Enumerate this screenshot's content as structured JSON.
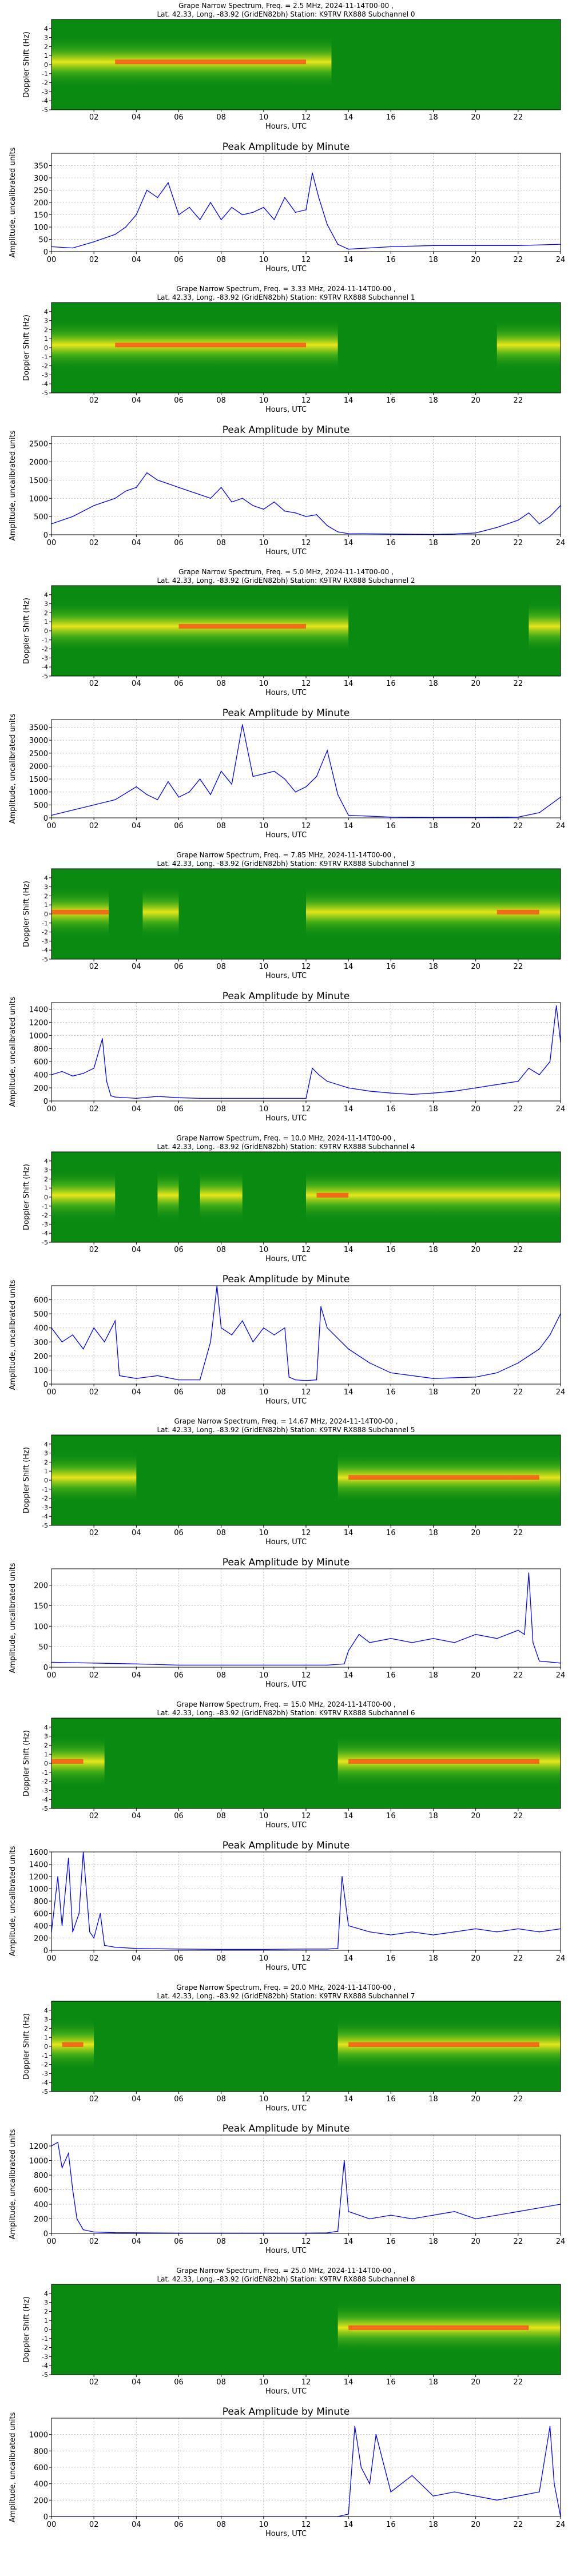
{
  "colors": {
    "spectrogram_bg": "#0b8a12",
    "spectrogram_mid": "#4fb41a",
    "spectrogram_hot": "#e6e61a",
    "spectrogram_peak": "#ff3b1a",
    "amplitude_line": "#0000ff",
    "grid": "#b0b0b0"
  },
  "shared": {
    "x_label": "Hours, UTC",
    "x_tick_labels": [
      "00",
      "02",
      "04",
      "06",
      "08",
      "10",
      "12",
      "14",
      "16",
      "18",
      "20",
      "22",
      "24"
    ],
    "spectrogram_x_tick_labels": [
      "02",
      "04",
      "06",
      "08",
      "10",
      "12",
      "14",
      "16",
      "18",
      "20",
      "22"
    ],
    "spectrogram_y_label": "Doppler Shift (Hz)",
    "spectrogram_y_tick_labels": [
      "4",
      "3",
      "2",
      "1",
      "0",
      "-1",
      "-2",
      "-3",
      "-4",
      "-5"
    ],
    "amplitude_title": "Peak Amplitude by Minute",
    "amplitude_y_label": "Amplitude, uncalibrated units"
  },
  "channels": [
    {
      "title_line1": "Grape Narrow Spectrum, Freq. = 2.5 MHz, 2024-11-14T00-00 ,",
      "title_line2": "Lat.  42.33, Long. -83.92 (GridEN82bh) Station: K9TRV RX888 Subchannel 0"
    },
    {
      "title_line1": "Grape Narrow Spectrum, Freq. = 3.33 MHz, 2024-11-14T00-00 ,",
      "title_line2": "Lat.  42.33, Long. -83.92 (GridEN82bh) Station: K9TRV RX888 Subchannel 1"
    },
    {
      "title_line1": "Grape Narrow Spectrum, Freq. = 5.0 MHz, 2024-11-14T00-00 ,",
      "title_line2": "Lat.  42.33, Long. -83.92 (GridEN82bh) Station: K9TRV RX888 Subchannel 2"
    },
    {
      "title_line1": "Grape Narrow Spectrum, Freq. = 7.85 MHz, 2024-11-14T00-00 ,",
      "title_line2": "Lat.  42.33, Long. -83.92 (GridEN82bh) Station: K9TRV RX888 Subchannel 3"
    },
    {
      "title_line1": "Grape Narrow Spectrum, Freq. = 10.0 MHz, 2024-11-14T00-00 ,",
      "title_line2": "Lat.  42.33, Long. -83.92 (GridEN82bh) Station: K9TRV RX888 Subchannel 4"
    },
    {
      "title_line1": "Grape Narrow Spectrum, Freq. = 14.67 MHz, 2024-11-14T00-00 ,",
      "title_line2": "Lat.  42.33, Long. -83.92 (GridEN82bh) Station: K9TRV RX888 Subchannel 5"
    },
    {
      "title_line1": "Grape Narrow Spectrum, Freq. = 15.0 MHz, 2024-11-14T00-00 ,",
      "title_line2": "Lat.  42.33, Long. -83.92 (GridEN82bh) Station: K9TRV RX888 Subchannel 6"
    },
    {
      "title_line1": "Grape Narrow Spectrum, Freq. = 20.0 MHz, 2024-11-14T00-00 ,",
      "title_line2": "Lat.  42.33, Long. -83.92 (GridEN82bh) Station: K9TRV RX888 Subchannel 7"
    },
    {
      "title_line1": "Grape Narrow Spectrum, Freq. = 25.0 MHz, 2024-11-14T00-00 ,",
      "title_line2": "Lat.  42.33, Long. -83.92 (GridEN82bh) Station: K9TRV RX888 Subchannel 8"
    }
  ],
  "chart_data": [
    {
      "type": "heatmap",
      "x_range": [
        0,
        24
      ],
      "y_range": [
        -5,
        5
      ],
      "signal_hours": [
        [
          0,
          13.2
        ]
      ],
      "peak_hours": [
        [
          3,
          12
        ]
      ],
      "signal_offset_hz": 0.3
    },
    {
      "type": "line",
      "ylim": [
        0,
        400
      ],
      "y_ticks": [
        0,
        50,
        100,
        150,
        200,
        250,
        300,
        350
      ],
      "x_range": [
        0,
        24
      ],
      "x": [
        0,
        1,
        2,
        3,
        3.5,
        4,
        4.5,
        5,
        5.5,
        6,
        6.5,
        7,
        7.5,
        8,
        8.5,
        9,
        9.5,
        10,
        10.5,
        11,
        11.5,
        12,
        12.3,
        12.6,
        13,
        13.5,
        14,
        16,
        18,
        20,
        22,
        24
      ],
      "values": [
        20,
        15,
        40,
        70,
        100,
        150,
        250,
        220,
        280,
        150,
        180,
        130,
        200,
        130,
        180,
        150,
        160,
        180,
        130,
        220,
        160,
        170,
        320,
        220,
        110,
        30,
        10,
        20,
        25,
        25,
        25,
        30
      ]
    },
    {
      "type": "heatmap",
      "x_range": [
        0,
        24
      ],
      "y_range": [
        -5,
        5
      ],
      "signal_hours": [
        [
          0,
          13.5
        ],
        [
          21,
          24
        ]
      ],
      "peak_hours": [
        [
          3,
          12
        ]
      ],
      "signal_offset_hz": 0.3
    },
    {
      "type": "line",
      "ylim": [
        0,
        2700
      ],
      "y_ticks": [
        0,
        500,
        1000,
        1500,
        2000,
        2500
      ],
      "x_range": [
        0,
        24
      ],
      "x": [
        0,
        1,
        2,
        3,
        3.5,
        4,
        4.5,
        5,
        5.5,
        6,
        6.5,
        7,
        7.5,
        8,
        8.5,
        9,
        9.5,
        10,
        10.5,
        11,
        11.5,
        12,
        12.5,
        13,
        13.5,
        14,
        16,
        18,
        19,
        20,
        21,
        22,
        22.5,
        23,
        23.5,
        24
      ],
      "values": [
        300,
        500,
        800,
        1000,
        1200,
        1300,
        1700,
        1500,
        1400,
        1300,
        1200,
        1100,
        1000,
        1300,
        900,
        1000,
        800,
        700,
        900,
        650,
        600,
        500,
        550,
        250,
        80,
        30,
        20,
        10,
        20,
        50,
        200,
        400,
        600,
        300,
        500,
        800
      ]
    },
    {
      "type": "heatmap",
      "x_range": [
        0,
        24
      ],
      "y_range": [
        -5,
        5
      ],
      "signal_hours": [
        [
          0,
          14
        ],
        [
          22.5,
          24
        ]
      ],
      "peak_hours": [
        [
          6,
          12
        ]
      ],
      "signal_offset_hz": 0.5
    },
    {
      "type": "line",
      "ylim": [
        0,
        3800
      ],
      "y_ticks": [
        0,
        500,
        1000,
        1500,
        2000,
        2500,
        3000,
        3500
      ],
      "x_range": [
        0,
        24
      ],
      "x": [
        0,
        1,
        2,
        3,
        4,
        4.5,
        5,
        5.5,
        6,
        6.5,
        7,
        7.5,
        8,
        8.5,
        9,
        9.5,
        10,
        10.5,
        11,
        11.5,
        12,
        12.5,
        13,
        13.5,
        14,
        16,
        18,
        20,
        22,
        23,
        23.5,
        24
      ],
      "values": [
        100,
        300,
        500,
        700,
        1200,
        900,
        700,
        1400,
        800,
        1000,
        1500,
        900,
        1800,
        1300,
        3600,
        1600,
        1700,
        1800,
        1500,
        1000,
        1200,
        1600,
        2600,
        900,
        100,
        30,
        20,
        20,
        30,
        200,
        500,
        800
      ]
    },
    {
      "type": "heatmap",
      "x_range": [
        0,
        24
      ],
      "y_range": [
        -5,
        5
      ],
      "signal_hours": [
        [
          0,
          2.7
        ],
        [
          4.3,
          6
        ],
        [
          12,
          24
        ]
      ],
      "peak_hours": [
        [
          0,
          2.7
        ],
        [
          21,
          23
        ]
      ],
      "signal_offset_hz": 0.2
    },
    {
      "type": "line",
      "ylim": [
        0,
        1500
      ],
      "y_ticks": [
        0,
        200,
        400,
        600,
        800,
        1000,
        1200,
        1400
      ],
      "x_range": [
        0,
        24
      ],
      "x": [
        0,
        0.5,
        1,
        1.5,
        2,
        2.4,
        2.6,
        2.8,
        3,
        4,
        5,
        6,
        7,
        8,
        10,
        12,
        12.3,
        12.6,
        13,
        14,
        15,
        16,
        17,
        18,
        19,
        20,
        21,
        22,
        22.5,
        23,
        23.5,
        23.8,
        24
      ],
      "values": [
        400,
        450,
        380,
        420,
        500,
        950,
        300,
        80,
        60,
        40,
        70,
        50,
        40,
        40,
        40,
        40,
        500,
        400,
        300,
        200,
        150,
        120,
        100,
        120,
        150,
        200,
        250,
        300,
        500,
        400,
        600,
        1450,
        900
      ]
    },
    {
      "type": "heatmap",
      "x_range": [
        0,
        24
      ],
      "y_range": [
        -5,
        5
      ],
      "signal_hours": [
        [
          0,
          3
        ],
        [
          5,
          6
        ],
        [
          7,
          9
        ],
        [
          12,
          24
        ]
      ],
      "peak_hours": [
        [
          12.5,
          14
        ]
      ],
      "signal_offset_hz": 0.2
    },
    {
      "type": "line",
      "ylim": [
        0,
        700
      ],
      "y_ticks": [
        0,
        100,
        200,
        300,
        400,
        500,
        600
      ],
      "x_range": [
        0,
        24
      ],
      "x": [
        0,
        0.5,
        1,
        1.5,
        2,
        2.5,
        3,
        3.2,
        4,
        5,
        6,
        7,
        7.5,
        7.8,
        8,
        8.5,
        9,
        9.5,
        10,
        10.5,
        11,
        11.2,
        11.5,
        12,
        12.5,
        12.7,
        13,
        14,
        15,
        16,
        18,
        20,
        21,
        22,
        23,
        23.5,
        24
      ],
      "values": [
        400,
        300,
        350,
        250,
        400,
        300,
        450,
        60,
        40,
        60,
        30,
        30,
        300,
        700,
        400,
        350,
        450,
        300,
        400,
        350,
        400,
        50,
        30,
        25,
        30,
        550,
        400,
        250,
        150,
        80,
        40,
        50,
        80,
        150,
        250,
        350,
        500
      ]
    },
    {
      "type": "heatmap",
      "x_range": [
        0,
        24
      ],
      "y_range": [
        -5,
        5
      ],
      "signal_hours": [
        [
          0,
          4
        ],
        [
          13.5,
          24
        ]
      ],
      "peak_hours": [
        [
          14,
          23
        ]
      ],
      "signal_offset_hz": 0.3
    },
    {
      "type": "line",
      "ylim": [
        0,
        240
      ],
      "y_ticks": [
        0,
        50,
        100,
        150,
        200
      ],
      "x_range": [
        0,
        24
      ],
      "x": [
        0,
        2,
        4,
        6,
        8,
        10,
        12,
        13,
        13.8,
        14,
        14.5,
        15,
        16,
        17,
        18,
        19,
        20,
        21,
        22,
        22.3,
        22.5,
        22.7,
        23,
        24
      ],
      "values": [
        12,
        10,
        8,
        5,
        5,
        5,
        5,
        5,
        8,
        40,
        80,
        60,
        70,
        60,
        70,
        60,
        80,
        70,
        90,
        80,
        230,
        60,
        15,
        10
      ]
    },
    {
      "type": "heatmap",
      "x_range": [
        0,
        24
      ],
      "y_range": [
        -5,
        5
      ],
      "signal_hours": [
        [
          0,
          2.5
        ],
        [
          13.5,
          24
        ]
      ],
      "peak_hours": [
        [
          0,
          1.5
        ],
        [
          14,
          23
        ]
      ],
      "signal_offset_hz": 0.2
    },
    {
      "type": "line",
      "ylim": [
        0,
        1600
      ],
      "y_ticks": [
        0,
        200,
        400,
        600,
        800,
        1000,
        1200,
        1400,
        1600
      ],
      "x_range": [
        0,
        24
      ],
      "x": [
        0,
        0.3,
        0.5,
        0.8,
        1,
        1.3,
        1.5,
        1.8,
        2,
        2.3,
        2.5,
        3,
        4,
        6,
        8,
        10,
        12,
        13,
        13.5,
        13.7,
        14,
        15,
        16,
        17,
        18,
        19,
        20,
        21,
        22,
        23,
        24
      ],
      "values": [
        300,
        1200,
        400,
        1500,
        300,
        600,
        1600,
        300,
        200,
        600,
        80,
        50,
        30,
        20,
        15,
        15,
        20,
        20,
        30,
        1200,
        400,
        300,
        250,
        300,
        250,
        300,
        350,
        300,
        350,
        300,
        350
      ]
    },
    {
      "type": "heatmap",
      "x_range": [
        0,
        24
      ],
      "y_range": [
        -5,
        5
      ],
      "signal_hours": [
        [
          0,
          2
        ],
        [
          13.5,
          24
        ]
      ],
      "peak_hours": [
        [
          0.5,
          1.5
        ],
        [
          14,
          23
        ]
      ],
      "signal_offset_hz": 0.2
    },
    {
      "type": "line",
      "ylim": [
        0,
        1350
      ],
      "y_ticks": [
        0,
        200,
        400,
        600,
        800,
        1000,
        1200
      ],
      "x_range": [
        0,
        24
      ],
      "x": [
        0,
        0.3,
        0.5,
        0.8,
        1,
        1.2,
        1.5,
        2,
        3,
        6,
        9,
        12,
        13,
        13.5,
        13.8,
        14,
        15,
        16,
        17,
        18,
        19,
        20,
        21,
        22,
        23,
        24
      ],
      "values": [
        1200,
        1250,
        900,
        1100,
        600,
        200,
        50,
        20,
        10,
        5,
        5,
        5,
        8,
        30,
        1000,
        300,
        200,
        250,
        200,
        250,
        300,
        200,
        250,
        300,
        350,
        400
      ]
    },
    {
      "type": "heatmap",
      "x_range": [
        0,
        24
      ],
      "y_range": [
        -5,
        5
      ],
      "signal_hours": [
        [
          13.5,
          24
        ]
      ],
      "peak_hours": [
        [
          14,
          22.5
        ]
      ],
      "signal_offset_hz": 0.2
    },
    {
      "type": "line",
      "ylim": [
        0,
        1200
      ],
      "y_ticks": [
        0,
        200,
        400,
        600,
        800,
        1000
      ],
      "x_range": [
        0,
        24
      ],
      "x": [
        0,
        4,
        8,
        12,
        13.5,
        14,
        14.3,
        14.6,
        15,
        15.3,
        15.6,
        16,
        17,
        18,
        19,
        20,
        21,
        22,
        23,
        23.5,
        23.7,
        24
      ],
      "values": [
        0,
        0,
        0,
        0,
        0,
        30,
        1100,
        600,
        400,
        1000,
        700,
        300,
        500,
        250,
        300,
        250,
        200,
        250,
        300,
        1100,
        400,
        0
      ]
    }
  ]
}
